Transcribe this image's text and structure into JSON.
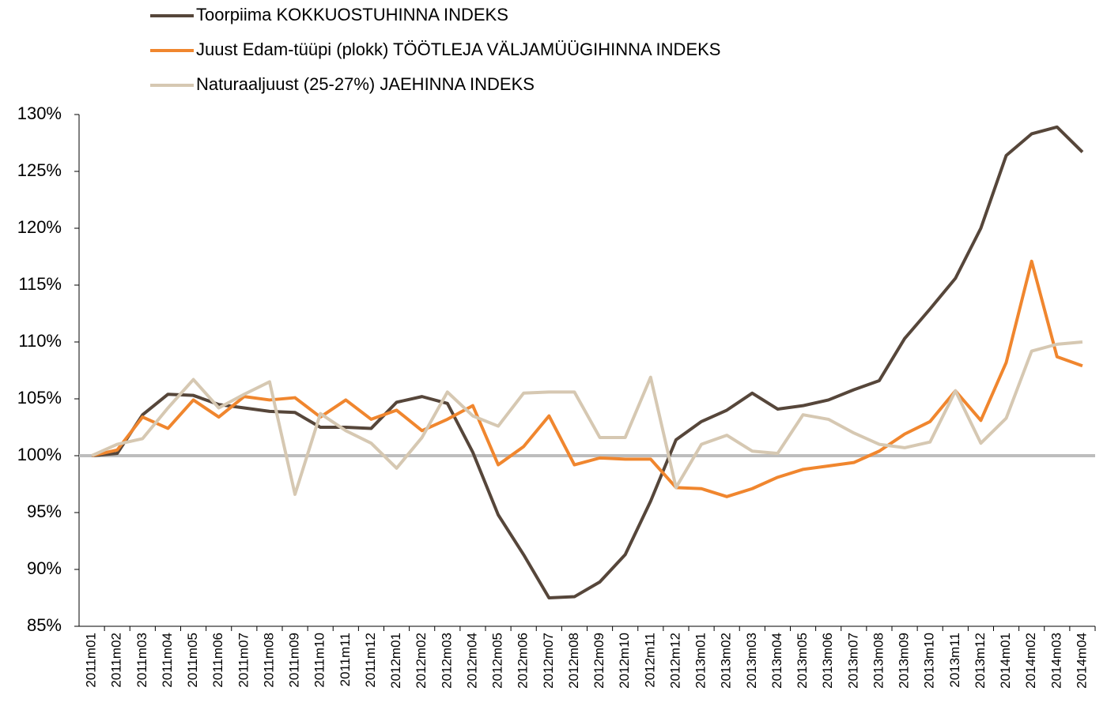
{
  "chart_data": {
    "type": "line",
    "categories": [
      "2011m01",
      "2011m02",
      "2011m03",
      "2011m04",
      "2011m05",
      "2011m06",
      "2011m07",
      "2011m08",
      "2011m09",
      "2011m10",
      "2011m11",
      "2011m12",
      "2012m01",
      "2012m02",
      "2012m03",
      "2012m04",
      "2012m05",
      "2012m06",
      "2012m07",
      "2012m08",
      "2012m09",
      "2012m10",
      "2012m11",
      "2012m12",
      "2013m01",
      "2013m02",
      "2013m03",
      "2013m04",
      "2013m05",
      "2013m06",
      "2013m07",
      "2013m08",
      "2013m09",
      "2013m10",
      "2013m11",
      "2013m12",
      "2014m01",
      "2014m02",
      "2014m03",
      "2014m04"
    ],
    "series": [
      {
        "name": "Toorpiima KOKKUOSTUHINNA INDEKS",
        "color": "#56463a",
        "values": [
          100,
          100.2,
          103.6,
          105.4,
          105.3,
          104.5,
          104.2,
          103.9,
          103.8,
          102.5,
          102.5,
          102.4,
          104.7,
          105.2,
          104.6,
          100.3,
          94.8,
          91.3,
          87.5,
          87.6,
          88.9,
          91.3,
          96,
          101.4,
          103,
          104,
          105.5,
          104.1,
          104.4,
          104.9,
          105.8,
          106.6,
          110.3,
          112.9,
          115.6,
          120,
          126.4,
          128.3,
          128.9,
          126.7
        ]
      },
      {
        "name": "Juust Edam-tüüpi (plokk) TÖÖTLEJA VÄLJAMÜÜGIHINNA INDEKS",
        "color": "#f0862e",
        "values": [
          100,
          100.5,
          103.4,
          102.4,
          104.9,
          103.4,
          105.2,
          104.9,
          105.1,
          103.4,
          104.9,
          103.2,
          104,
          102.2,
          103.2,
          104.4,
          99.2,
          100.8,
          103.5,
          99.2,
          99.8,
          99.7,
          99.7,
          97.2,
          97.1,
          96.4,
          97.1,
          98.1,
          98.8,
          99.1,
          99.4,
          100.4,
          101.9,
          103,
          105.7,
          103.1,
          108.2,
          117.1,
          108.7,
          107.9
        ]
      },
      {
        "name": "Naturaaljuust (25-27%) JAEHINNA INDEKS",
        "color": "#d6c8b2",
        "values": [
          100,
          101,
          101.5,
          104.2,
          106.7,
          104.2,
          105.4,
          106.5,
          96.6,
          103.7,
          102.2,
          101.1,
          98.9,
          101.6,
          105.6,
          103.5,
          102.6,
          105.5,
          105.6,
          105.6,
          101.6,
          101.6,
          106.9,
          97.2,
          101,
          101.8,
          100.4,
          100.2,
          103.6,
          103.2,
          102,
          101,
          100.7,
          101.2,
          105.7,
          101.1,
          103.3,
          109.2,
          109.8,
          110
        ]
      }
    ],
    "ylim": [
      85,
      130
    ],
    "yticks": [
      {
        "value": 85,
        "label": "85%"
      },
      {
        "value": 90,
        "label": "90%"
      },
      {
        "value": 95,
        "label": "95%"
      },
      {
        "value": 100,
        "label": "100%"
      },
      {
        "value": 105,
        "label": "105%"
      },
      {
        "value": 110,
        "label": "110%"
      },
      {
        "value": 115,
        "label": "115%"
      },
      {
        "value": 120,
        "label": "120%"
      },
      {
        "value": 125,
        "label": "125%"
      },
      {
        "value": 130,
        "label": "130%"
      }
    ],
    "reference_line": 100,
    "reference_color": "#bdbdbd",
    "legend": "top"
  }
}
